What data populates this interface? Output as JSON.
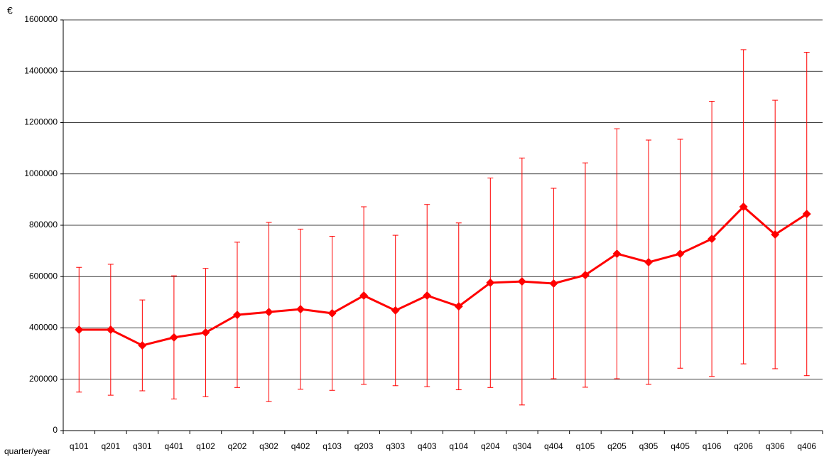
{
  "chart_data": {
    "type": "line",
    "y_label": "€",
    "x_label": "quarter/year",
    "categories": [
      "q101",
      "q201",
      "q301",
      "q401",
      "q102",
      "q202",
      "q302",
      "q402",
      "q103",
      "q203",
      "q303",
      "q403",
      "q104",
      "q204",
      "q304",
      "q404",
      "q105",
      "q205",
      "q305",
      "q405",
      "q106",
      "q206",
      "q306",
      "q406"
    ],
    "series": [
      {
        "color": "#ff0000",
        "values": [
          393000,
          393000,
          332000,
          363000,
          382000,
          451000,
          462000,
          473000,
          457000,
          526000,
          468000,
          526000,
          484000,
          576000,
          581000,
          573000,
          606000,
          689000,
          656000,
          689000,
          747000,
          872000,
          764000,
          844000
        ],
        "errors": [
          243000,
          255000,
          177000,
          240000,
          250000,
          283000,
          349000,
          312000,
          300000,
          346000,
          293000,
          355000,
          325000,
          408000,
          481000,
          371000,
          437000,
          487000,
          476000,
          446000,
          536000,
          612000,
          523000,
          630000
        ]
      }
    ],
    "ylim": [
      0,
      1600000
    ],
    "yticks": [
      0,
      200000,
      400000,
      600000,
      800000,
      1000000,
      1200000,
      1400000,
      1600000
    ],
    "grid": true
  }
}
